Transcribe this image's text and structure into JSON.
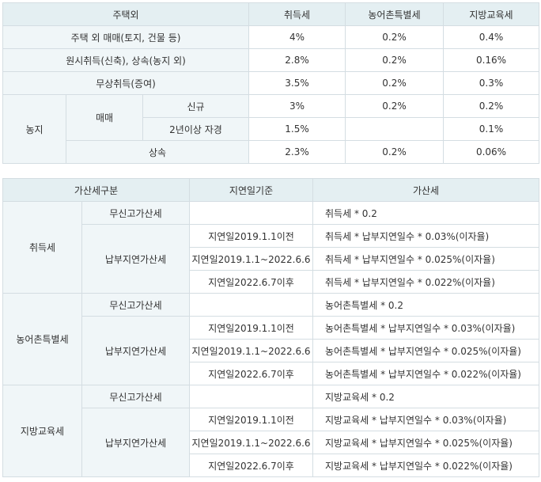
{
  "tax_table": {
    "headers": [
      "주택외",
      "취득세",
      "농어촌특별세",
      "지방교육세"
    ],
    "rows": [
      {
        "label": "주택 외 매매(토지, 건물 등)",
        "values": [
          "4%",
          "0.2%",
          "0.4%"
        ]
      },
      {
        "label": "원시취득(신축), 상속(농지 외)",
        "values": [
          "2.8%",
          "0.2%",
          "0.16%"
        ]
      },
      {
        "label": "무상취득(증여)",
        "values": [
          "3.5%",
          "0.2%",
          "0.3%"
        ]
      }
    ],
    "farmland": {
      "label": "농지",
      "sale_label": "매매",
      "new_label": "신규",
      "new_values": [
        "3%",
        "0.2%",
        "0.2%"
      ],
      "selfcult_label": "2년이상 자경",
      "selfcult_values": [
        "1.5%",
        "",
        "0.1%"
      ],
      "inherit_label": "상속",
      "inherit_values": [
        "2.3%",
        "0.2%",
        "0.06%"
      ]
    }
  },
  "penalty_table": {
    "headers": [
      "가산세구분",
      "지연일기준",
      "가산세"
    ],
    "groups": [
      {
        "tax": "취득세",
        "noreport_label": "무신고가산세",
        "noreport_formula": "취득세 * 0.2",
        "late_label": "납부지연가산세",
        "rows": [
          {
            "period": "지연일2019.1.1이전",
            "formula": "취득세 * 납부지연일수 * 0.03%(이자율)"
          },
          {
            "period": "지연일2019.1.1~2022.6.6",
            "formula": "취득세 * 납부지연일수 * 0.025%(이자율)"
          },
          {
            "period": "지연일2022.6.7이후",
            "formula": "취득세 * 납부지연일수 * 0.022%(이자율)"
          }
        ]
      },
      {
        "tax": "농어촌특별세",
        "noreport_label": "무신고가산세",
        "noreport_formula": "농어촌특별세 * 0.2",
        "late_label": "납부지연가산세",
        "rows": [
          {
            "period": "지연일2019.1.1이전",
            "formula": "농어촌특별세 * 납부지연일수 * 0.03%(이자율)"
          },
          {
            "period": "지연일2019.1.1~2022.6.6",
            "formula": "농어촌특별세 * 납부지연일수 * 0.025%(이자율)"
          },
          {
            "period": "지연일2022.6.7이후",
            "formula": "농어촌특별세 * 납부지연일수 * 0.022%(이자율)"
          }
        ]
      },
      {
        "tax": "지방교육세",
        "noreport_label": "무신고가산세",
        "noreport_formula": "지방교육세 * 0.2",
        "late_label": "납부지연가산세",
        "rows": [
          {
            "period": "지연일2019.1.1이전",
            "formula": "지방교육세 * 납부지연일수 * 0.03%(이자율)"
          },
          {
            "period": "지연일2019.1.1~2022.6.6",
            "formula": "지방교육세 * 납부지연일수 * 0.025%(이자율)"
          },
          {
            "period": "지연일2022.6.7이후",
            "formula": "지방교육세 * 납부지연일수 * 0.022%(이자율)"
          }
        ]
      }
    ]
  }
}
